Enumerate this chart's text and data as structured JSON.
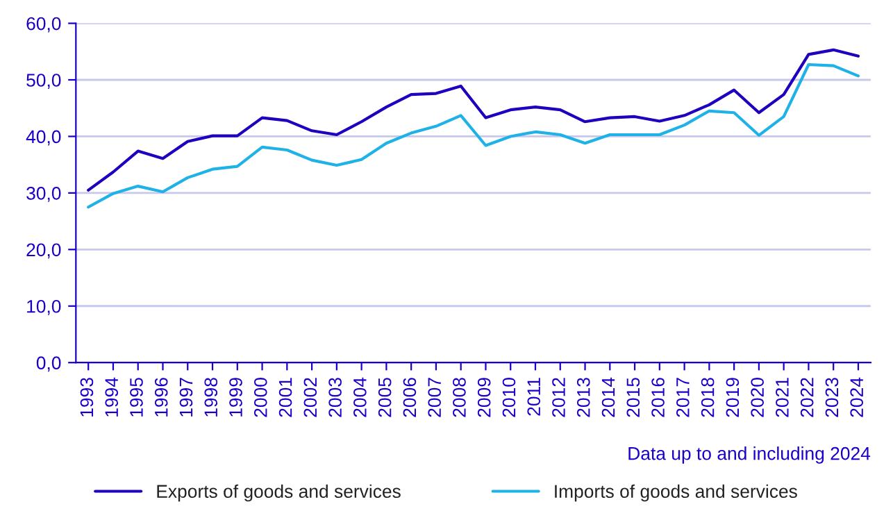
{
  "chart_data": {
    "type": "line",
    "categories": [
      "1993",
      "1994",
      "1995",
      "1996",
      "1997",
      "1998",
      "1999",
      "2000",
      "2001",
      "2002",
      "2003",
      "2004",
      "2005",
      "2006",
      "2007",
      "2008",
      "2009",
      "2010",
      "2011",
      "2012",
      "2013",
      "2014",
      "2015",
      "2016",
      "2017",
      "2018",
      "2019",
      "2020",
      "2021",
      "2022",
      "2023",
      "2024"
    ],
    "series": [
      {
        "name": "Exports of goods and services",
        "color": "#1e00be",
        "values": [
          30.5,
          33.7,
          37.4,
          36.1,
          39.1,
          40.1,
          40.1,
          43.3,
          42.8,
          41.0,
          40.3,
          42.6,
          45.2,
          47.4,
          47.6,
          48.9,
          43.3,
          44.7,
          45.2,
          44.7,
          42.6,
          43.3,
          43.5,
          42.7,
          43.7,
          45.6,
          48.2,
          44.2,
          47.4,
          54.5,
          55.3,
          54.2
        ]
      },
      {
        "name": "Imports of goods and services",
        "color": "#1fb2e6",
        "values": [
          27.5,
          29.9,
          31.2,
          30.2,
          32.7,
          34.2,
          34.7,
          38.1,
          37.6,
          35.8,
          34.9,
          35.9,
          38.8,
          40.6,
          41.8,
          43.7,
          38.4,
          40.0,
          40.8,
          40.3,
          38.8,
          40.3,
          40.3,
          40.3,
          42.0,
          44.5,
          44.2,
          40.2,
          43.5,
          52.7,
          52.5,
          50.7
        ]
      }
    ],
    "ylim": [
      0,
      60
    ],
    "yticks": [
      {
        "value": 0,
        "label": "0,0"
      },
      {
        "value": 10,
        "label": "10,0"
      },
      {
        "value": 20,
        "label": "20,0"
      },
      {
        "value": 30,
        "label": "30,0"
      },
      {
        "value": 40,
        "label": "40,0"
      },
      {
        "value": 50,
        "label": "50,0"
      },
      {
        "value": 60,
        "label": "60,0"
      }
    ],
    "grid": "y",
    "legend": "bottom",
    "marker": "none",
    "line_style": "solid",
    "annotations": [
      "Data up to and including 2024"
    ]
  }
}
